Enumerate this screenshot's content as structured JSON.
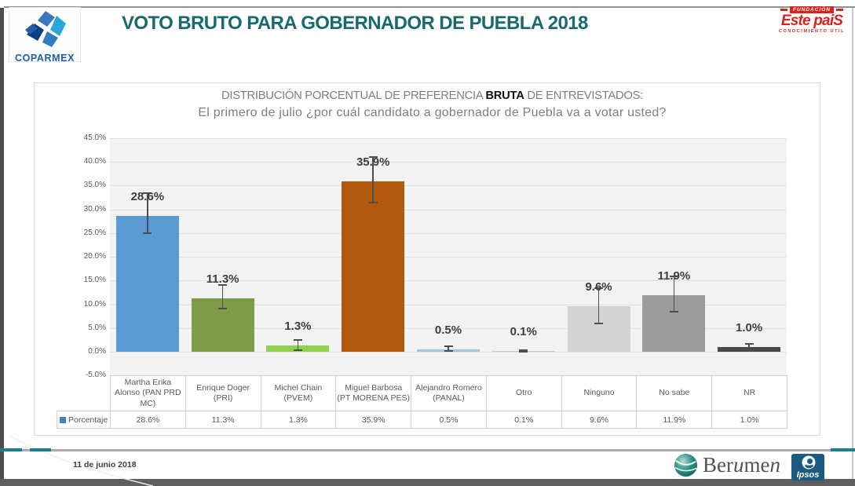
{
  "header": {
    "title": "VOTO BRUTO PARA GOBERNADOR DE PUEBLA 2018",
    "coparmex_label": "COPARMEX",
    "estepais": {
      "line1": "FUNDACIÓN",
      "line2": "Este paiS",
      "line3": "CONOCIMIENTO ÚTIL"
    }
  },
  "chart_data": {
    "type": "bar",
    "title_line1_prefix": "DISTRIBUCIÓN PORCENTUAL DE PREFERENCIA ",
    "title_line1_bold": "BRUTA",
    "title_line1_suffix": " DE ENTREVISTADOS:",
    "title_line2": "El primero de julio ¿por cuál candidato a gobernador de Puebla va a votar usted?",
    "categories": [
      {
        "lines": [
          "Martha Erika",
          "Alonso (PAN PRD",
          "MC)"
        ]
      },
      {
        "lines": [
          "Enrique Doger",
          "(PRI)"
        ]
      },
      {
        "lines": [
          "Michel Chain",
          "(PVEM)"
        ]
      },
      {
        "lines": [
          "Miguel Barbosa",
          "(PT MORENA PES)"
        ]
      },
      {
        "lines": [
          "Alejandro Romero",
          "(PANAL)"
        ]
      },
      {
        "lines": [
          "Otro"
        ]
      },
      {
        "lines": [
          "Ninguno"
        ]
      },
      {
        "lines": [
          "No sabe"
        ]
      },
      {
        "lines": [
          "NR"
        ]
      }
    ],
    "values": [
      28.6,
      11.3,
      1.3,
      35.9,
      0.5,
      0.1,
      9.6,
      11.9,
      1.0
    ],
    "value_labels": [
      "28.6%",
      "11.3%",
      "1.3%",
      "35.9%",
      "0.5%",
      "0.1%",
      "9.6%",
      "11.9%",
      "1.0%"
    ],
    "error_hi": [
      33.4,
      14.1,
      2.5,
      41.0,
      1.1,
      0.3,
      13.4,
      15.9,
      1.6
    ],
    "error_lo": [
      25.0,
      9.1,
      0.4,
      31.5,
      0.1,
      0.0,
      6.0,
      8.4,
      0.4
    ],
    "bar_colors": [
      "#5b9bd5",
      "#7f9b4a",
      "#92d050",
      "#b15a0e",
      "#9dc3e6",
      "#c8c8c8",
      "#d3d3d3",
      "#9c9c9c",
      "#484848"
    ],
    "ylim": [
      -5,
      45
    ],
    "ytick_labels": [
      "45.0%",
      "40.0%",
      "35.0%",
      "30.0%",
      "25.0%",
      "20.0%",
      "15.0%",
      "10.0%",
      "5.0%",
      "0.0%",
      "-5.0%"
    ],
    "legend_label": "Porcentaje",
    "legend_color": "#4a7cc0",
    "grid": true
  },
  "footer": {
    "date": "11 de junio 2018",
    "berumen": {
      "p1": "Ber",
      "p2": "u",
      "p3": "me",
      "p4": "n"
    },
    "ipsos_label": "Ipsos"
  }
}
